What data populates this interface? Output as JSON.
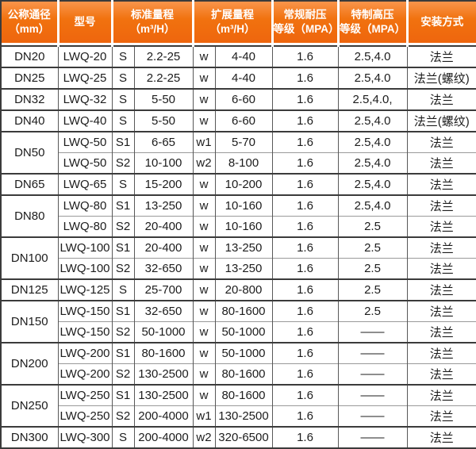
{
  "colors": {
    "header_orange": "#ee640d",
    "header_orange_light": "#f9954b",
    "header_text": "#ffffff",
    "border_dark": "#3b3b3b",
    "border_light": "#9a9a9a",
    "cell_text": "#1c1c1c"
  },
  "table": {
    "headers": [
      {
        "line1": "公称通径",
        "line2": "（mm）"
      },
      {
        "line1": "型号",
        "line2": ""
      },
      {
        "line1": "标准量程",
        "line2": "（m³/H）"
      },
      {
        "line1": "扩展量程",
        "line2": "（m³/H）"
      },
      {
        "line1": "常规耐压",
        "line2": "等级（MPA）"
      },
      {
        "line1": "特制高压",
        "line2": "等级（MPA）"
      },
      {
        "line1": "安装方式",
        "line2": ""
      }
    ],
    "groups": [
      {
        "dn": "DN20",
        "rows": [
          {
            "model": "LWQ-20",
            "std_code": "S",
            "std_range": "2.2-25",
            "ext_code": "w",
            "ext_range": "4-40",
            "pressure": "1.6",
            "high_pressure": "2.5,4.0",
            "install": "法兰"
          }
        ]
      },
      {
        "dn": "DN25",
        "rows": [
          {
            "model": "LWQ-25",
            "std_code": "S",
            "std_range": "2.2-25",
            "ext_code": "w",
            "ext_range": "4-40",
            "pressure": "1.6",
            "high_pressure": "2.5,4.0",
            "install": "法兰(螺纹)"
          }
        ]
      },
      {
        "dn": "DN32",
        "rows": [
          {
            "model": "LWQ-32",
            "std_code": "S",
            "std_range": "5-50",
            "ext_code": "w",
            "ext_range": "6-60",
            "pressure": "1.6",
            "high_pressure": "2.5,4.0,",
            "install": "法兰"
          }
        ]
      },
      {
        "dn": "DN40",
        "rows": [
          {
            "model": "LWQ-40",
            "std_code": "S",
            "std_range": "5-50",
            "ext_code": "w",
            "ext_range": "6-60",
            "pressure": "1.6",
            "high_pressure": "2.5,4.0",
            "install": "法兰(螺纹)"
          }
        ]
      },
      {
        "dn": "DN50",
        "rows": [
          {
            "model": "LWQ-50",
            "std_code": "S1",
            "std_range": "6-65",
            "ext_code": "w1",
            "ext_range": "5-70",
            "pressure": "1.6",
            "high_pressure": "2.5,4.0",
            "install": "法兰"
          },
          {
            "model": "LWQ-50",
            "std_code": "S2",
            "std_range": "10-100",
            "ext_code": "w2",
            "ext_range": "8-100",
            "pressure": "1.6",
            "high_pressure": "2.5,4.0",
            "install": "法兰"
          }
        ]
      },
      {
        "dn": "DN65",
        "rows": [
          {
            "model": "LWQ-65",
            "std_code": "S",
            "std_range": "15-200",
            "ext_code": "w",
            "ext_range": "10-200",
            "pressure": "1.6",
            "high_pressure": "2.5,4.0",
            "install": "法兰"
          }
        ]
      },
      {
        "dn": "DN80",
        "rows": [
          {
            "model": "LWQ-80",
            "std_code": "S1",
            "std_range": "13-250",
            "ext_code": "w",
            "ext_range": "10-160",
            "pressure": "1.6",
            "high_pressure": "2.5,4.0",
            "install": "法兰"
          },
          {
            "model": "LWQ-80",
            "std_code": "S2",
            "std_range": "20-400",
            "ext_code": "w",
            "ext_range": "10-160",
            "pressure": "1.6",
            "high_pressure": "2.5",
            "install": "法兰"
          }
        ]
      },
      {
        "dn": "DN100",
        "rows": [
          {
            "model": "LWQ-100",
            "std_code": "S1",
            "std_range": "20-400",
            "ext_code": "w",
            "ext_range": "13-250",
            "pressure": "1.6",
            "high_pressure": "2.5",
            "install": "法兰"
          },
          {
            "model": "LWQ-100",
            "std_code": "S2",
            "std_range": "32-650",
            "ext_code": "w",
            "ext_range": "13-250",
            "pressure": "1.6",
            "high_pressure": "2.5",
            "install": "法兰"
          }
        ]
      },
      {
        "dn": "DN125",
        "rows": [
          {
            "model": "LWQ-125",
            "std_code": "S",
            "std_range": "25-700",
            "ext_code": "w",
            "ext_range": "20-800",
            "pressure": "1.6",
            "high_pressure": "2.5",
            "install": "法兰"
          }
        ]
      },
      {
        "dn": "DN150",
        "rows": [
          {
            "model": "LWQ-150",
            "std_code": "S1",
            "std_range": "32-650",
            "ext_code": "w",
            "ext_range": "80-1600",
            "pressure": "1.6",
            "high_pressure": "2.5",
            "install": "法兰"
          },
          {
            "model": "LWQ-150",
            "std_code": "S2",
            "std_range": "50-1000",
            "ext_code": "w",
            "ext_range": "50-1000",
            "pressure": "1.6",
            "high_pressure": "——",
            "install": "法兰"
          }
        ]
      },
      {
        "dn": "DN200",
        "rows": [
          {
            "model": "LWQ-200",
            "std_code": "S1",
            "std_range": "80-1600",
            "ext_code": "w",
            "ext_range": "50-1000",
            "pressure": "1.6",
            "high_pressure": "——",
            "install": "法兰"
          },
          {
            "model": "LWQ-200",
            "std_code": "S2",
            "std_range": "130-2500",
            "ext_code": "w",
            "ext_range": "80-1600",
            "pressure": "1.6",
            "high_pressure": "——",
            "install": "法兰"
          }
        ]
      },
      {
        "dn": "DN250",
        "rows": [
          {
            "model": "LWQ-250",
            "std_code": "S1",
            "std_range": "130-2500",
            "ext_code": "w",
            "ext_range": "80-1600",
            "pressure": "1.6",
            "high_pressure": "——",
            "install": "法兰"
          },
          {
            "model": "LWQ-250",
            "std_code": "S2",
            "std_range": "200-4000",
            "ext_code": "w1",
            "ext_range": "130-2500",
            "pressure": "1.6",
            "high_pressure": "——",
            "install": "法兰"
          }
        ]
      },
      {
        "dn": "DN300",
        "rows": [
          {
            "model": "LWQ-300",
            "std_code": "S",
            "std_range": "200-4000",
            "ext_code": "w2",
            "ext_range": "320-6500",
            "pressure": "1.6",
            "high_pressure": "——",
            "install": "法兰"
          }
        ]
      }
    ]
  }
}
